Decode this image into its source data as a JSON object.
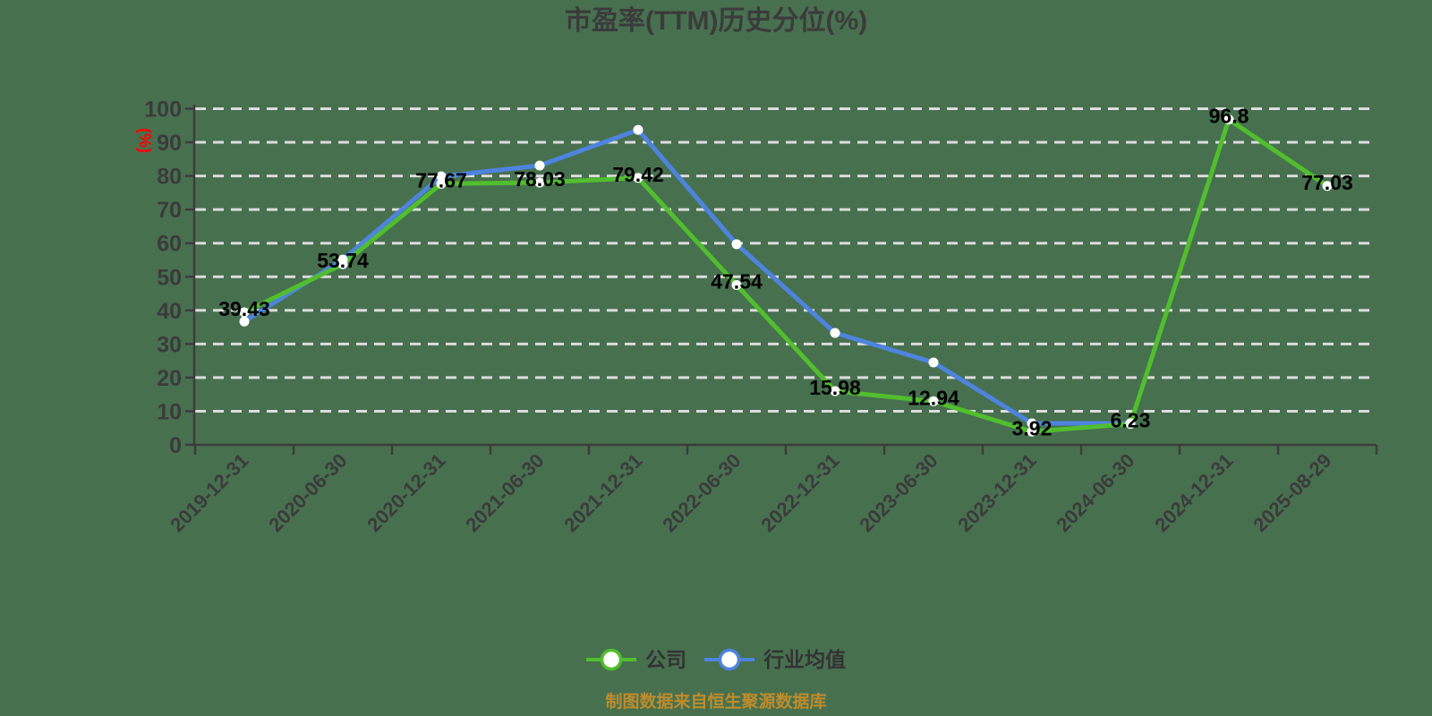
{
  "title": "市盈率(TTM)历史分位(%)",
  "footer": "制图数据来自恒生聚源数据库",
  "chart_data": {
    "type": "line",
    "title": "市盈率(TTM)历史分位(%)",
    "xlabel": "",
    "ylabel": "(%)",
    "ylim": [
      0,
      100
    ],
    "ytick_interval": 10,
    "grid": "horizontal-dashed",
    "legend_position": "bottom",
    "categories": [
      "2019-12-31",
      "2020-06-30",
      "2020-12-31",
      "2021-06-30",
      "2021-12-31",
      "2022-06-30",
      "2022-12-31",
      "2023-06-30",
      "2023-12-31",
      "2024-06-30",
      "2024-12-31",
      "2025-08-29"
    ],
    "series": [
      {
        "name": "公司",
        "color": "#51BE2E",
        "show_point_labels": true,
        "values": [
          39.43,
          53.74,
          77.67,
          78.03,
          79.42,
          47.54,
          15.98,
          12.94,
          3.92,
          6.23,
          96.8,
          77.03
        ]
      },
      {
        "name": "行业均值",
        "color": "#4E84DE",
        "show_point_labels": false,
        "values": [
          36.7,
          55.1,
          79.9,
          83.1,
          93.7,
          59.7,
          33.3,
          24.5,
          6.4,
          6.4,
          null,
          null
        ]
      }
    ]
  },
  "colors": {
    "background": "#47704F",
    "title_text": "#3B3B3B",
    "axis_text": "#3B3B3B",
    "axis_line": "#3C3C3C",
    "gridline": "#DCDCDC",
    "data_label": "#000000",
    "y_unit_label": "#FF0000",
    "footer_text": "#BE8C2B",
    "marker_fill": "#FFFFFF",
    "legend_text": "#333333"
  }
}
